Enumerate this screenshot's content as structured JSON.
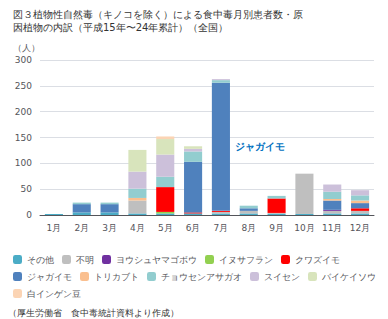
{
  "chart_data": {
    "type": "bar",
    "stacked": true,
    "title": "図３植物性自然毒（キノコを除く）による食中毒月別患者数・原",
    "subtitle": "因植物の内訳（平成15年〜24年累計）（全国）",
    "ylabel": "（人）",
    "categories": [
      "1月",
      "2月",
      "3月",
      "4月",
      "5月",
      "6月",
      "7月",
      "8月",
      "9月",
      "10月",
      "11月",
      "12月"
    ],
    "series": [
      {
        "name": "その他",
        "color": "#4bacc6",
        "values": [
          2,
          5,
          5,
          3,
          3,
          3,
          3,
          3,
          2,
          2,
          3,
          3
        ]
      },
      {
        "name": "不明",
        "color": "#bfbfbf",
        "values": [
          0,
          0,
          0,
          25,
          0,
          0,
          3,
          5,
          2,
          78,
          5,
          5
        ]
      },
      {
        "name": "ヨウシュヤマゴボウ",
        "color": "#7030a0",
        "values": [
          0,
          0,
          0,
          0,
          0,
          0,
          0,
          0,
          0,
          0,
          2,
          0
        ]
      },
      {
        "name": "イヌサフラン",
        "color": "#92d050",
        "values": [
          0,
          0,
          0,
          0,
          3,
          0,
          0,
          0,
          0,
          0,
          0,
          0
        ]
      },
      {
        "name": "クワズイモ",
        "color": "#ff0000",
        "values": [
          0,
          0,
          0,
          0,
          48,
          2,
          2,
          0,
          28,
          0,
          0,
          5
        ]
      },
      {
        "name": "ジャガイモ",
        "color": "#4f81bd",
        "values": [
          0,
          16,
          16,
          0,
          0,
          98,
          248,
          5,
          0,
          0,
          18,
          10
        ]
      },
      {
        "name": "トリカブト",
        "color": "#fabf8f",
        "values": [
          0,
          0,
          0,
          5,
          0,
          0,
          0,
          0,
          0,
          0,
          3,
          5
        ]
      },
      {
        "name": "チョウセンアサガオ",
        "color": "#92cdcf",
        "values": [
          0,
          3,
          3,
          18,
          20,
          20,
          5,
          5,
          5,
          0,
          14,
          10
        ]
      },
      {
        "name": "スイセン",
        "color": "#ccc0da",
        "values": [
          0,
          0,
          0,
          33,
          43,
          5,
          2,
          0,
          0,
          0,
          14,
          10
        ]
      },
      {
        "name": "バイケイソウ",
        "color": "#d8e4bc",
        "values": [
          0,
          0,
          0,
          42,
          30,
          5,
          0,
          0,
          0,
          0,
          0,
          0
        ]
      },
      {
        "name": "白インゲン豆",
        "color": "#fbd4b4",
        "values": [
          0,
          0,
          0,
          0,
          5,
          0,
          0,
          0,
          0,
          0,
          0,
          0
        ]
      }
    ],
    "ylim": [
      0,
      300
    ],
    "yticks": [
      0,
      50,
      100,
      150,
      200,
      250,
      300
    ],
    "grid": true,
    "legend": "bottom",
    "annotations": [
      {
        "text": "ジャガイモ",
        "color": "#0070c0",
        "series": "ジャガイモ",
        "category": "7月"
      },
      {
        "text": "（厚生労働省　食中毒統計資料より作成）"
      }
    ]
  }
}
